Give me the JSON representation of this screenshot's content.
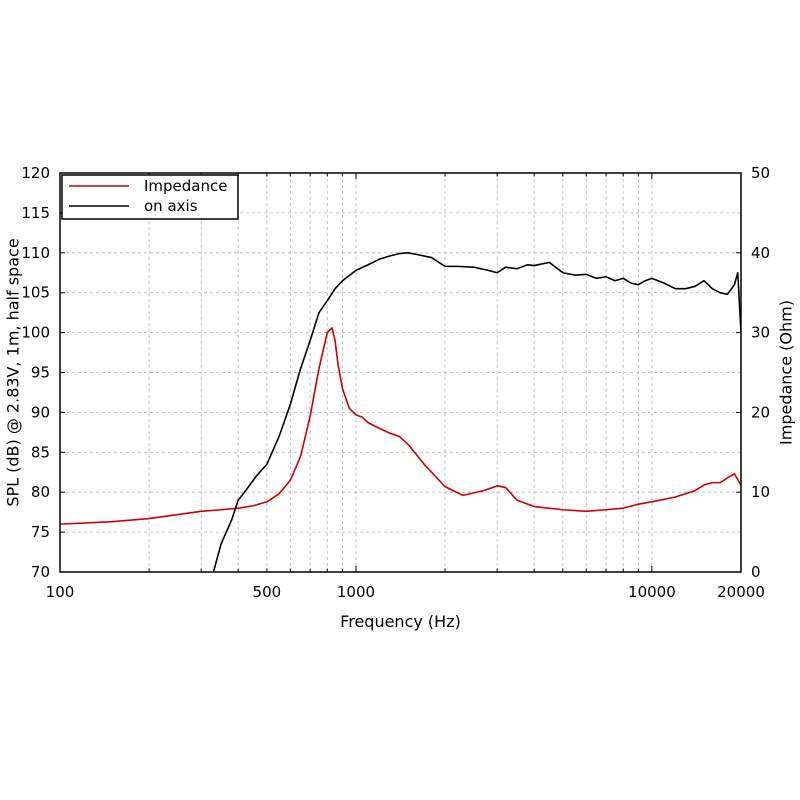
{
  "chart_data": {
    "type": "line",
    "xlabel": "Frequency (Hz)",
    "ylabel": "SPL (dB) @ 2.83V, 1m, half space",
    "y2label": "Impedance (Ohm)",
    "x_scale": "log",
    "xlim": [
      100,
      20000
    ],
    "ylim": [
      70,
      120
    ],
    "y2lim": [
      0,
      50
    ],
    "x_ticks": [
      100,
      500,
      1000,
      10000,
      20000
    ],
    "x_tick_labels": [
      "100",
      "500",
      "1000",
      "10000",
      "20000"
    ],
    "y_ticks": [
      70,
      75,
      80,
      85,
      90,
      95,
      100,
      105,
      110,
      115,
      120
    ],
    "y_tick_labels": [
      "70",
      "75",
      "80",
      "85",
      "90",
      "95",
      "100",
      "105",
      "110",
      "115",
      "120"
    ],
    "y2_ticks": [
      0,
      10,
      20,
      30,
      40,
      50
    ],
    "y2_tick_labels": [
      "0",
      "10",
      "20",
      "30",
      "40",
      "50"
    ],
    "grid": true,
    "legend_position": "top-left",
    "series": [
      {
        "name": "Impedance",
        "axis": "right",
        "color": "#cc0000",
        "x": [
          100,
          150,
          200,
          250,
          300,
          350,
          400,
          450,
          500,
          550,
          600,
          650,
          700,
          750,
          800,
          830,
          850,
          870,
          900,
          950,
          1000,
          1050,
          1100,
          1200,
          1300,
          1400,
          1500,
          1700,
          2000,
          2300,
          2700,
          3000,
          3200,
          3500,
          4000,
          5000,
          6000,
          7000,
          8000,
          9000,
          10000,
          12000,
          14000,
          15000,
          16000,
          17000,
          18000,
          19000,
          20000
        ],
        "y": [
          6.0,
          6.3,
          6.7,
          7.2,
          7.6,
          7.8,
          8.0,
          8.3,
          8.8,
          9.8,
          11.5,
          14.5,
          19.5,
          25.5,
          30.0,
          30.6,
          29.0,
          26.0,
          23.0,
          20.5,
          19.7,
          19.4,
          18.7,
          18.0,
          17.4,
          17.0,
          16.0,
          13.5,
          10.7,
          9.6,
          10.2,
          10.8,
          10.6,
          9.0,
          8.2,
          7.8,
          7.6,
          7.8,
          8.0,
          8.5,
          8.8,
          9.4,
          10.2,
          10.9,
          11.2,
          11.2,
          11.8,
          12.3,
          10.9
        ]
      },
      {
        "name": "on axis",
        "axis": "left",
        "color": "#000000",
        "x": [
          330,
          350,
          380,
          400,
          430,
          460,
          500,
          550,
          600,
          650,
          700,
          750,
          800,
          850,
          900,
          1000,
          1100,
          1200,
          1300,
          1400,
          1500,
          1600,
          1800,
          2000,
          2200,
          2500,
          2800,
          3000,
          3200,
          3500,
          3800,
          4000,
          4500,
          5000,
          5500,
          6000,
          6500,
          7000,
          7500,
          8000,
          8500,
          9000,
          9500,
          10000,
          11000,
          12000,
          13000,
          14000,
          15000,
          16000,
          17000,
          18000,
          19000,
          19500,
          20000
        ],
        "y": [
          70.0,
          73.5,
          76.5,
          79.0,
          80.5,
          82.0,
          83.5,
          87.0,
          91.0,
          95.5,
          99.0,
          102.5,
          104.0,
          105.5,
          106.5,
          107.8,
          108.5,
          109.2,
          109.6,
          109.9,
          110.0,
          109.8,
          109.4,
          108.3,
          108.3,
          108.2,
          107.8,
          107.5,
          108.2,
          108.0,
          108.5,
          108.4,
          108.8,
          107.5,
          107.2,
          107.3,
          106.8,
          107.0,
          106.5,
          106.8,
          106.2,
          106.0,
          106.5,
          106.8,
          106.2,
          105.5,
          105.5,
          105.8,
          106.5,
          105.5,
          105.0,
          104.8,
          106.0,
          107.5,
          100.0
        ]
      }
    ]
  }
}
